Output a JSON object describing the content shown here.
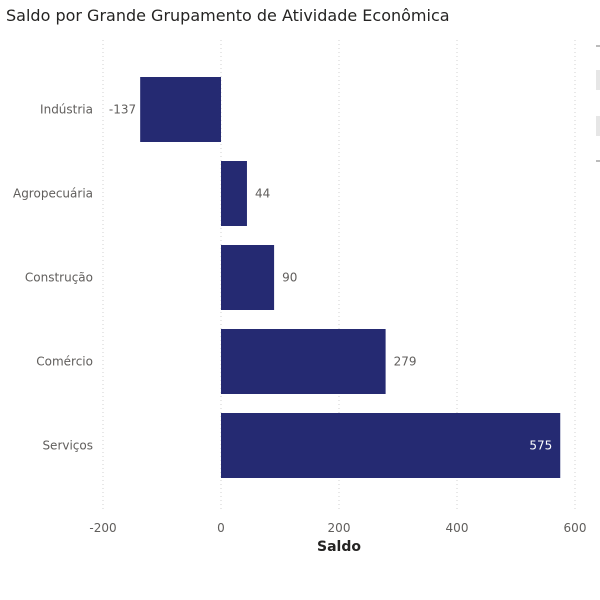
{
  "title": "Saldo por Grande Grupamento de Atividade Econômica",
  "chart_data": {
    "type": "bar",
    "orientation": "horizontal",
    "title": "Saldo por Grande Grupamento de Atividade Econômica",
    "categories": [
      "Indústria",
      "Agropecuária",
      "Construção",
      "Comércio",
      "Serviços"
    ],
    "values": [
      -137,
      44,
      90,
      279,
      575
    ],
    "xlabel": "Saldo",
    "ylabel": "",
    "xlim": [
      -200,
      600
    ],
    "xticks": [
      "-200",
      "0",
      "200",
      "400",
      "600"
    ],
    "grid": "vertical-dotted",
    "bar_color": "#252A72",
    "legend": "none"
  }
}
